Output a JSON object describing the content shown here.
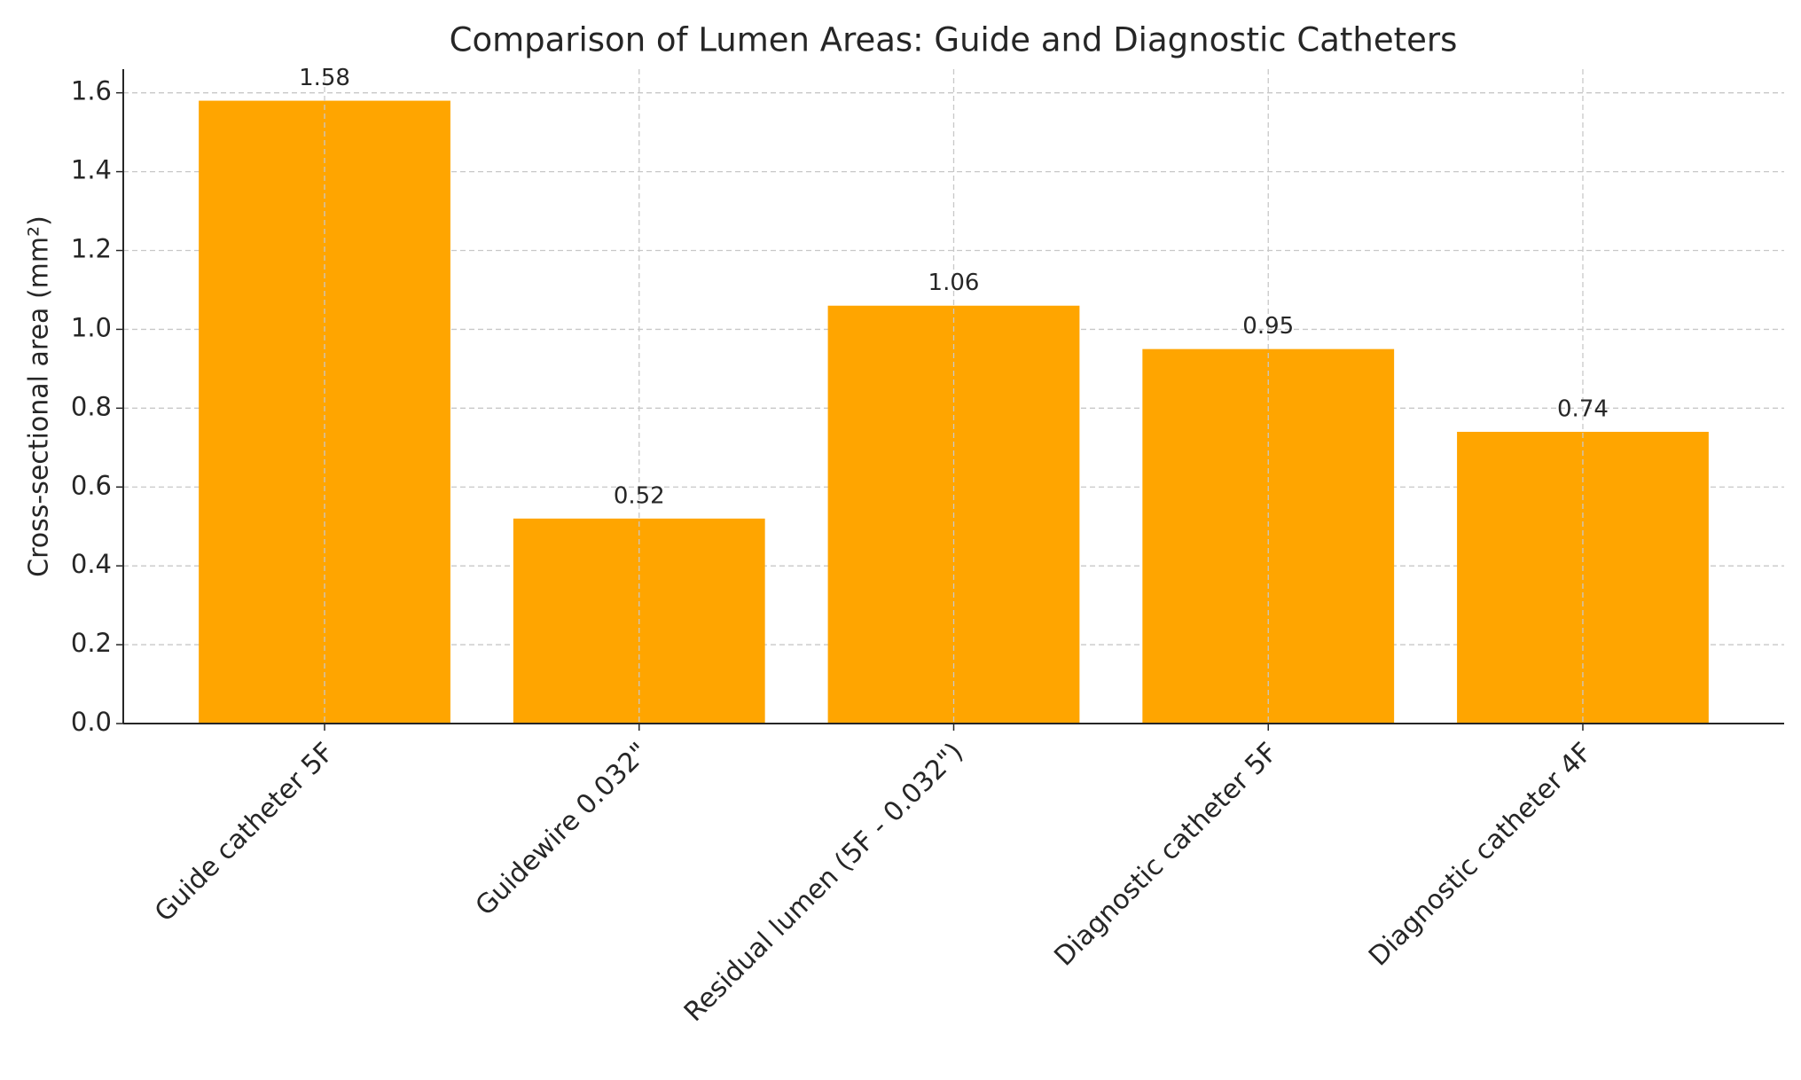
{
  "chart_data": {
    "type": "bar",
    "title": "Comparison of Lumen Areas: Guide and Diagnostic Catheters",
    "y_label": "Cross-sectional area (mm²)",
    "categories": [
      "Guide catheter 5F",
      "Guidewire 0.032\"",
      "Residual lumen (5F - 0.032\")",
      "Diagnostic catheter 5F",
      "Diagnostic catheter 4F"
    ],
    "values": [
      1.58,
      0.52,
      1.06,
      0.95,
      0.74
    ],
    "color": "#ffa500",
    "ylim": [
      0,
      1.66
    ],
    "yticks": [
      {
        "value": 0,
        "label": "0.0"
      },
      0.2,
      0.4,
      0.6,
      0.8,
      {
        "value": 1,
        "label": "1.0"
      },
      1.2,
      1.4,
      1.6
    ],
    "grid": true
  }
}
